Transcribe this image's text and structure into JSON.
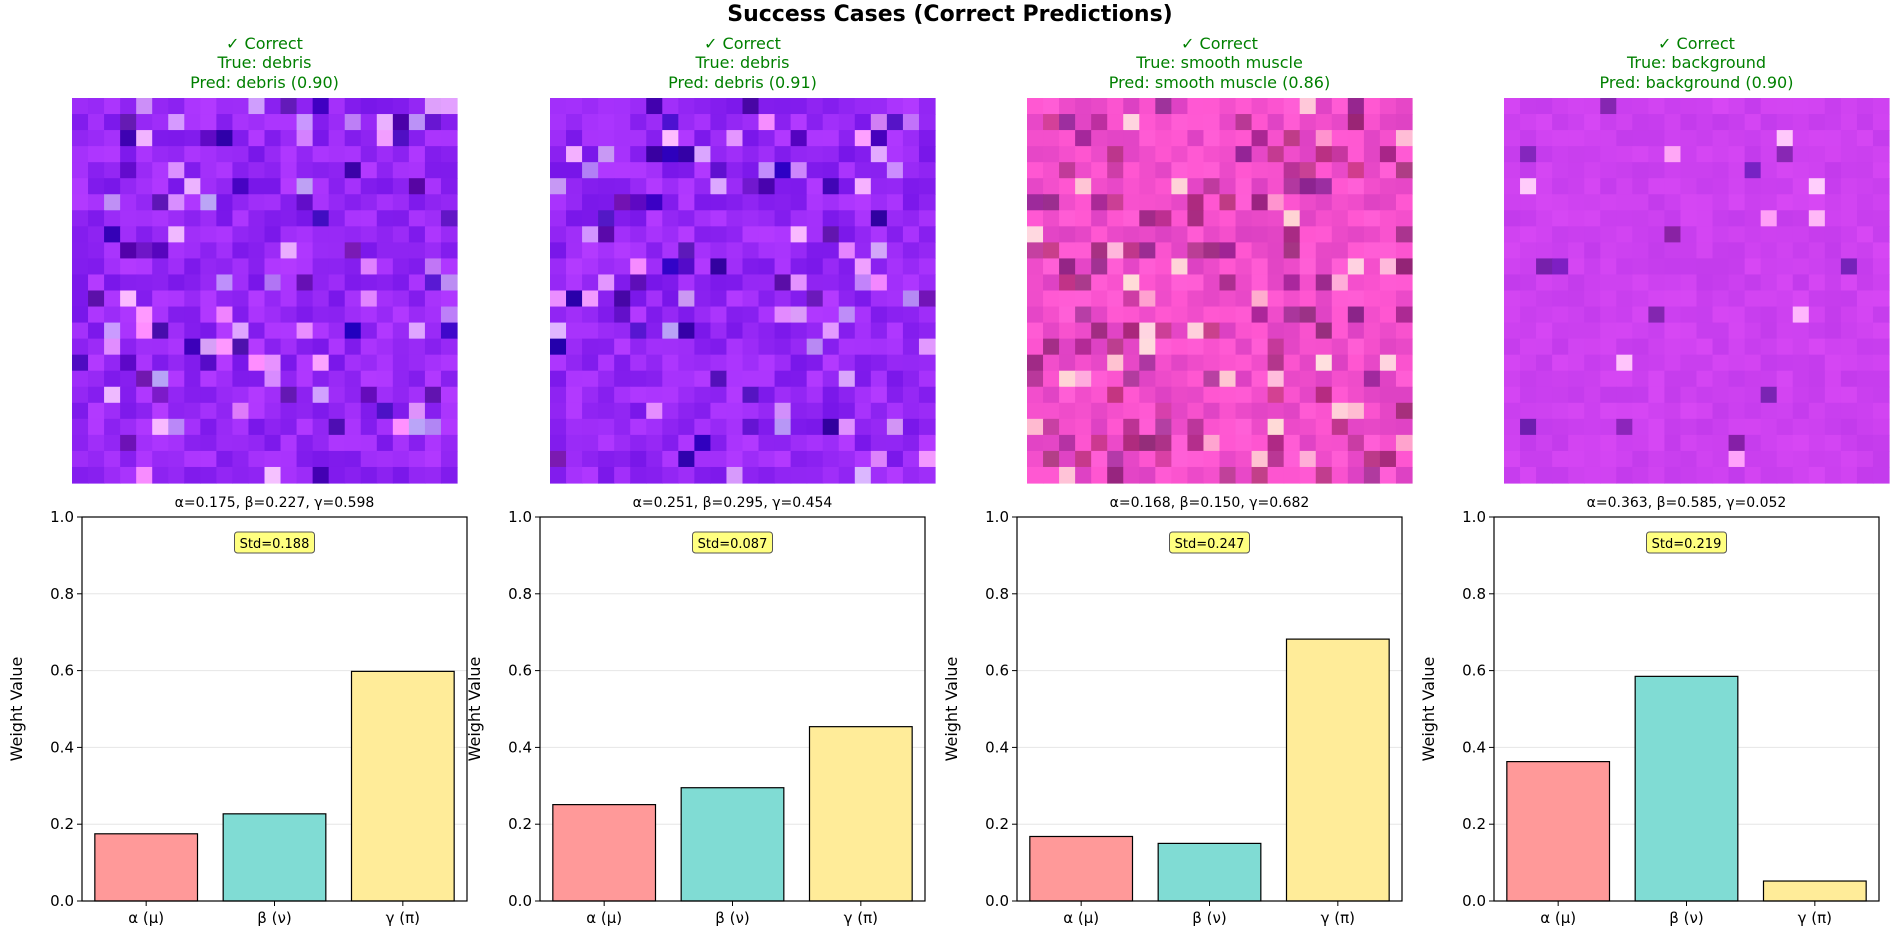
{
  "title": "Success Cases (Correct Predictions)",
  "colors": {
    "alpha": "#ff9999",
    "beta": "#80dcd4",
    "gamma": "#ffec99",
    "correct_text": "#008000",
    "std_box": "#ffff80"
  },
  "chart_data": [
    {
      "type": "bar",
      "status": "✓ Correct",
      "true_label": "True: debris",
      "pred_label": "Pred: debris (0.90)",
      "patch_tone": "purple",
      "subtitle": "α=0.175, β=0.227, γ=0.598",
      "std_label": "Std=0.188",
      "categories": [
        "α (μ)",
        "β (ν)",
        "γ (π)"
      ],
      "values": [
        0.175,
        0.227,
        0.598
      ],
      "ylabel": "Weight Value",
      "ylim": [
        0,
        1.0
      ],
      "yticks": [
        "0.0",
        "0.2",
        "0.4",
        "0.6",
        "0.8",
        "1.0"
      ]
    },
    {
      "type": "bar",
      "status": "✓ Correct",
      "true_label": "True: debris",
      "pred_label": "Pred: debris (0.91)",
      "patch_tone": "purple",
      "subtitle": "α=0.251, β=0.295, γ=0.454",
      "std_label": "Std=0.087",
      "categories": [
        "α (μ)",
        "β (ν)",
        "γ (π)"
      ],
      "values": [
        0.251,
        0.295,
        0.454
      ],
      "ylabel": "Weight Value",
      "ylim": [
        0,
        1.0
      ],
      "yticks": [
        "0.0",
        "0.2",
        "0.4",
        "0.6",
        "0.8",
        "1.0"
      ]
    },
    {
      "type": "bar",
      "status": "✓ Correct",
      "true_label": "True: smooth muscle",
      "pred_label": "Pred: smooth muscle (0.86)",
      "patch_tone": "pink",
      "subtitle": "α=0.168, β=0.150, γ=0.682",
      "std_label": "Std=0.247",
      "categories": [
        "α (μ)",
        "β (ν)",
        "γ (π)"
      ],
      "values": [
        0.168,
        0.15,
        0.682
      ],
      "ylabel": "Weight Value",
      "ylim": [
        0,
        1.0
      ],
      "yticks": [
        "0.0",
        "0.2",
        "0.4",
        "0.6",
        "0.8",
        "1.0"
      ]
    },
    {
      "type": "bar",
      "status": "✓ Correct",
      "true_label": "True: background",
      "pred_label": "Pred: background (0.90)",
      "patch_tone": "magenta",
      "subtitle": "α=0.363, β=0.585, γ=0.052",
      "std_label": "Std=0.219",
      "categories": [
        "α (μ)",
        "β (ν)",
        "γ (π)"
      ],
      "values": [
        0.363,
        0.585,
        0.052
      ],
      "ylabel": "Weight Value",
      "ylim": [
        0,
        1.0
      ],
      "yticks": [
        "0.0",
        "0.2",
        "0.4",
        "0.6",
        "0.8",
        "1.0"
      ]
    }
  ]
}
